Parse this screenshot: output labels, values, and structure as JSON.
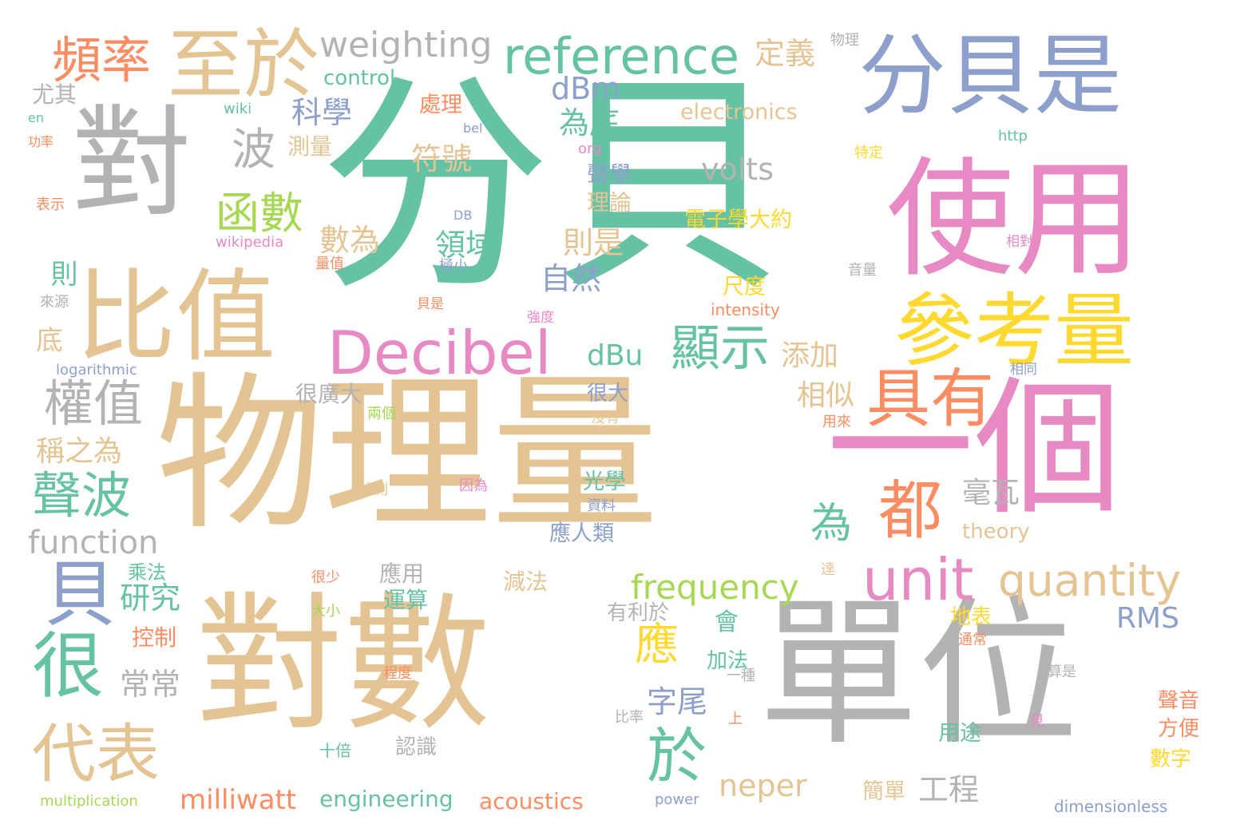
{
  "palette": {
    "green": "#66c2a5",
    "orange": "#fc8d62",
    "blue": "#8da0cb",
    "pink": "#e78ac3",
    "lime": "#a6d854",
    "yellow": "#ffd92f",
    "tan": "#e5c494",
    "gray": "#b3b3b3"
  },
  "words": [
    {
      "text": "分貝",
      "color": "green"
    },
    {
      "text": "物理量",
      "color": "tan"
    },
    {
      "text": "對數",
      "color": "tan"
    },
    {
      "text": "單位",
      "color": "gray"
    },
    {
      "text": "一個",
      "color": "pink"
    },
    {
      "text": "使用",
      "color": "pink"
    },
    {
      "text": "分貝是",
      "color": "blue"
    },
    {
      "text": "對",
      "color": "gray"
    },
    {
      "text": "比值",
      "color": "tan"
    },
    {
      "text": "至於",
      "color": "tan"
    },
    {
      "text": "參考量",
      "color": "yellow"
    },
    {
      "text": "Decibel",
      "color": "pink"
    },
    {
      "text": "具有",
      "color": "orange"
    },
    {
      "text": "reference",
      "color": "green"
    },
    {
      "text": "unit",
      "color": "pink"
    },
    {
      "text": "quantity",
      "color": "tan"
    },
    {
      "text": "都",
      "color": "orange"
    },
    {
      "text": "於",
      "color": "green"
    },
    {
      "text": "很",
      "color": "green"
    },
    {
      "text": "貝",
      "color": "blue"
    },
    {
      "text": "代表",
      "color": "tan"
    },
    {
      "text": "頻率",
      "color": "orange"
    },
    {
      "text": "weighting",
      "color": "gray"
    },
    {
      "text": "顯示",
      "color": "green"
    },
    {
      "text": "frequency",
      "color": "lime"
    },
    {
      "text": "權值",
      "color": "gray"
    },
    {
      "text": "聲波",
      "color": "green"
    },
    {
      "text": "function",
      "color": "gray"
    },
    {
      "text": "函數",
      "color": "lime"
    },
    {
      "text": "波",
      "color": "gray"
    },
    {
      "text": "為",
      "color": "green"
    },
    {
      "text": "應",
      "color": "yellow"
    },
    {
      "text": "定義",
      "color": "tan"
    },
    {
      "text": "volts",
      "color": "gray"
    },
    {
      "text": "electronics",
      "color": "tan"
    },
    {
      "text": "dBm",
      "color": "blue"
    },
    {
      "text": "dBu",
      "color": "green"
    },
    {
      "text": "添加",
      "color": "tan"
    },
    {
      "text": "milliwatt",
      "color": "orange"
    },
    {
      "text": "neper",
      "color": "tan"
    },
    {
      "text": "RMS",
      "color": "blue"
    },
    {
      "text": "毫瓦",
      "color": "gray"
    },
    {
      "text": "相似",
      "color": "tan"
    },
    {
      "text": "工程",
      "color": "gray"
    },
    {
      "text": "研究",
      "color": "green"
    },
    {
      "text": "常常",
      "color": "gray"
    },
    {
      "text": "稱之為",
      "color": "tan"
    },
    {
      "text": "科學",
      "color": "blue"
    },
    {
      "text": "為底",
      "color": "green"
    },
    {
      "text": "符號",
      "color": "tan"
    },
    {
      "text": "數為",
      "color": "tan"
    },
    {
      "text": "領域",
      "color": "green"
    },
    {
      "text": "則是",
      "color": "tan"
    },
    {
      "text": "自然",
      "color": "blue"
    },
    {
      "text": "字尾",
      "color": "blue"
    },
    {
      "text": "會",
      "color": "green"
    },
    {
      "text": "engineering",
      "color": "green"
    },
    {
      "text": "acoustics",
      "color": "orange"
    },
    {
      "text": "control",
      "color": "green"
    },
    {
      "text": "電子學大約",
      "color": "yellow"
    },
    {
      "text": "測量",
      "color": "tan"
    },
    {
      "text": "處理",
      "color": "orange"
    },
    {
      "text": "聲學",
      "color": "blue"
    },
    {
      "text": "理論",
      "color": "tan"
    },
    {
      "text": "theory",
      "color": "tan"
    },
    {
      "text": "光學",
      "color": "green"
    },
    {
      "text": "應人類",
      "color": "blue"
    },
    {
      "text": "應用",
      "color": "gray"
    },
    {
      "text": "運算",
      "color": "green"
    },
    {
      "text": "減法",
      "color": "tan"
    },
    {
      "text": "加法",
      "color": "green"
    },
    {
      "text": "很廣大",
      "color": "gray"
    },
    {
      "text": "很大",
      "color": "blue"
    },
    {
      "text": "有利於",
      "color": "gray"
    },
    {
      "text": "地表",
      "color": "yellow"
    },
    {
      "text": "乘法",
      "color": "green"
    },
    {
      "text": "控制",
      "color": "orange"
    },
    {
      "text": "尤其",
      "color": "gray"
    },
    {
      "text": "則",
      "color": "green"
    },
    {
      "text": "底",
      "color": "tan"
    },
    {
      "text": "尺度",
      "color": "yellow"
    },
    {
      "text": "intensity",
      "color": "orange"
    },
    {
      "text": "logarithmic",
      "color": "blue"
    },
    {
      "text": "multiplication",
      "color": "lime"
    },
    {
      "text": "power",
      "color": "blue"
    },
    {
      "text": "dimensionless",
      "color": "blue"
    },
    {
      "text": "簡單",
      "color": "tan"
    },
    {
      "text": "用途",
      "color": "green"
    },
    {
      "text": "聲音",
      "color": "orange"
    },
    {
      "text": "方便",
      "color": "orange"
    },
    {
      "text": "數字",
      "color": "yellow"
    },
    {
      "text": "認識",
      "color": "gray"
    },
    {
      "text": "十倍",
      "color": "green"
    },
    {
      "text": "wiki",
      "color": "green"
    },
    {
      "text": "en",
      "color": "green"
    },
    {
      "text": "功率",
      "color": "orange"
    },
    {
      "text": "表示",
      "color": "orange"
    },
    {
      "text": "來源",
      "color": "gray"
    },
    {
      "text": "物理",
      "color": "gray"
    },
    {
      "text": "bel",
      "color": "blue"
    },
    {
      "text": "org",
      "color": "pink"
    },
    {
      "text": "DB",
      "color": "blue"
    },
    {
      "text": "wikipedia",
      "color": "pink"
    },
    {
      "text": "量值",
      "color": "orange"
    },
    {
      "text": "極小",
      "color": "blue"
    },
    {
      "text": "貝是",
      "color": "orange"
    },
    {
      "text": "強度",
      "color": "pink"
    },
    {
      "text": "http",
      "color": "green"
    },
    {
      "text": "特定",
      "color": "yellow"
    },
    {
      "text": "相對",
      "color": "pink"
    },
    {
      "text": "音量",
      "color": "gray"
    },
    {
      "text": "相同",
      "color": "blue"
    },
    {
      "text": "用來",
      "color": "orange"
    },
    {
      "text": "沒有",
      "color": "tan"
    },
    {
      "text": "兩個",
      "color": "lime"
    },
    {
      "text": "的測",
      "color": "tan"
    },
    {
      "text": "因為",
      "color": "pink"
    },
    {
      "text": "資料",
      "color": "blue"
    },
    {
      "text": "達",
      "color": "tan"
    },
    {
      "text": "很少",
      "color": "orange"
    },
    {
      "text": "大小",
      "color": "lime"
    },
    {
      "text": "程度",
      "color": "orange"
    },
    {
      "text": "一種",
      "color": "gray"
    },
    {
      "text": "通常",
      "color": "orange"
    },
    {
      "text": "算是",
      "color": "gray"
    },
    {
      "text": "上",
      "color": "orange"
    },
    {
      "text": "比率",
      "color": "gray"
    },
    {
      "text": "見",
      "color": "pink"
    }
  ]
}
